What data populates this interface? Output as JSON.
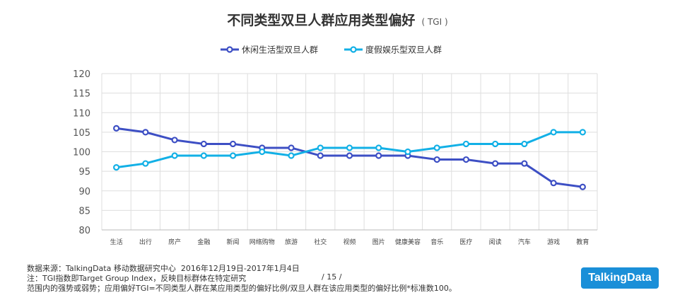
{
  "title": "不同类型双旦人群应用类型偏好",
  "title_suffix": "( TGI )",
  "footer": {
    "source": "数据来源：TalkingData 移动数据研究中心  2016年12月19日-2017年1月4日",
    "note1": "注：TGI指数即Target Group Index，反映目标群体在特定研究",
    "note2": "范围内的强势或弱势；应用偏好TGI=不同类型人群在某应用类型的偏好比例/双旦人群在该应用类型的偏好比例*标准数100。",
    "page": "/  15  /"
  },
  "brand": "TalkingData",
  "chart_data": {
    "type": "line",
    "categories": [
      "生活",
      "出行",
      "房产",
      "金融",
      "新闻",
      "网络购物",
      "旅游",
      "社交",
      "视频",
      "图片",
      "健康美容",
      "音乐",
      "医疗",
      "阅读",
      "汽车",
      "游戏",
      "教育"
    ],
    "series": [
      {
        "name": "休闲生活型双旦人群",
        "color": "#3d4fc4",
        "values": [
          106,
          105,
          103,
          102,
          102,
          101,
          101,
          99,
          99,
          99,
          99,
          98,
          98,
          97,
          97,
          92,
          91
        ]
      },
      {
        "name": "度假娱乐型双旦人群",
        "color": "#12b0e6",
        "values": [
          96,
          97,
          99,
          99,
          99,
          100,
          99,
          101,
          101,
          101,
          100,
          101,
          102,
          102,
          102,
          105,
          105
        ]
      }
    ],
    "ylim": [
      80,
      120
    ],
    "yticks": [
      80,
      85,
      90,
      95,
      100,
      105,
      110,
      115,
      120
    ],
    "grid": true,
    "legend": "top-center"
  }
}
